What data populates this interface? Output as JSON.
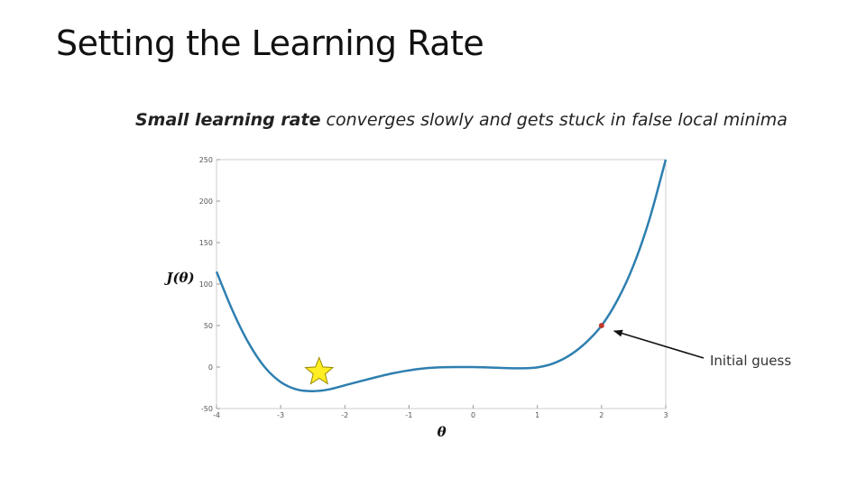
{
  "slide": {
    "title": "Setting the Learning Rate",
    "subtitle_strong": "Small learning rate",
    "subtitle_rest": " converges slowly and gets stuck in false local minima"
  },
  "chart_data": {
    "type": "line",
    "xlabel": "θ",
    "ylabel": "J(θ)",
    "xlim": [
      -4,
      3
    ],
    "ylim": [
      -50,
      250
    ],
    "x_ticks": [
      -4,
      -3,
      -2,
      -1,
      0,
      1,
      2,
      3
    ],
    "y_ticks": [
      -50,
      0,
      50,
      100,
      150,
      200,
      250
    ],
    "grid": false,
    "line_color": "#2e7fb0",
    "series": [
      {
        "x": [
          -4,
          -3.75,
          -3.5,
          -3.25,
          -3,
          -2.75,
          -2.5,
          -2.25,
          -2,
          -1.75,
          -1.5,
          -1.25,
          -1,
          -0.75,
          -0.5,
          -0.25,
          0,
          0.25,
          0.5,
          0.75,
          1,
          1.25,
          1.5,
          1.75,
          2,
          2.25,
          2.5,
          2.75,
          3
        ],
        "y": [
          115,
          68,
          29,
          0,
          -18,
          -27,
          -29,
          -27,
          -22,
          -17,
          -12,
          -7.5,
          -4,
          -1.5,
          -0.3,
          0,
          0,
          -0.5,
          -1.2,
          -1.5,
          -0.4,
          4.5,
          14,
          29,
          50,
          81,
          123,
          179,
          250
        ]
      }
    ],
    "annotations": [
      {
        "text": "Initial guess",
        "x": 2,
        "y": 50,
        "marker_color": "#c0392b"
      }
    ],
    "global_min_marker": {
      "x": -2.4,
      "y": -6,
      "fill": "#ffee22",
      "stroke": "#9a8a00"
    }
  }
}
